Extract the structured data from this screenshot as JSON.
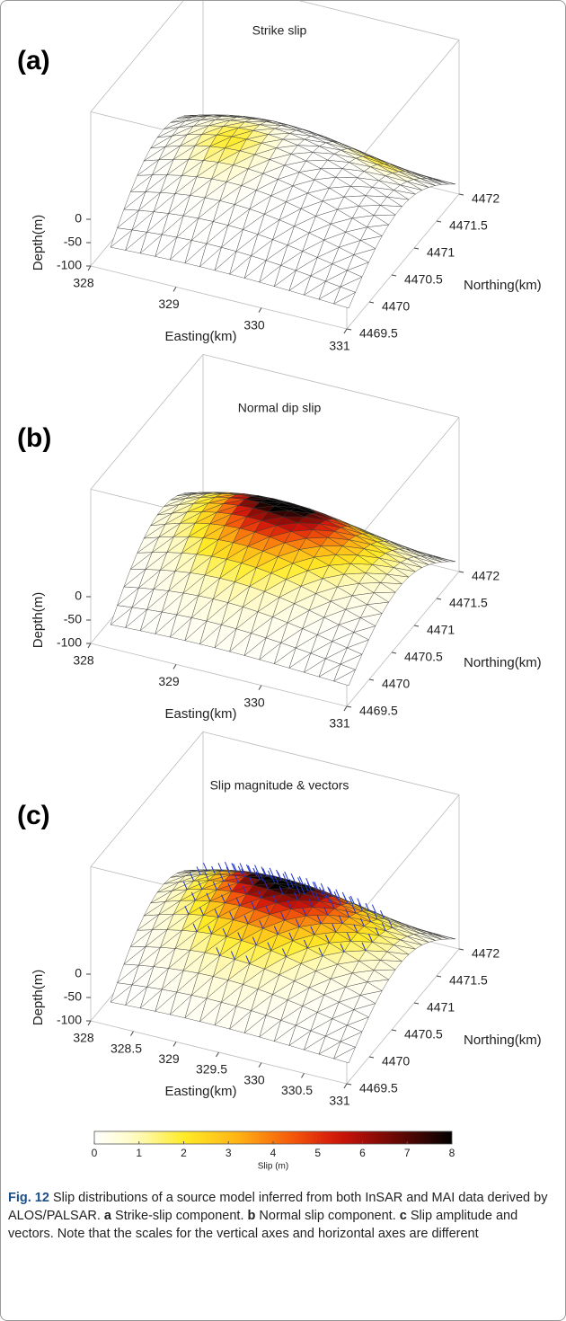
{
  "panels": [
    {
      "label": "(a)",
      "title": "Strike slip",
      "xlabel": "Easting(km)",
      "ylabel": "Northing(km)",
      "zlabel": "Depth(m)",
      "easting_lim": [
        328,
        331
      ],
      "easting_ticks": [
        328,
        329,
        330,
        331
      ],
      "northing_lim": [
        4469.5,
        4472
      ],
      "northing_ticks": [
        4469.5,
        4470,
        4470.5,
        4471,
        4471.5,
        4472
      ],
      "depth_lim": [
        -100,
        0
      ],
      "depth_ticks": [
        0,
        -50,
        -100
      ]
    },
    {
      "label": "(b)",
      "title": "Normal dip slip",
      "xlabel": "Easting(km)",
      "ylabel": "Northing(km)",
      "zlabel": "Depth(m)",
      "easting_lim": [
        328,
        331
      ],
      "easting_ticks": [
        328,
        329,
        330,
        331
      ],
      "northing_lim": [
        4469.5,
        4472
      ],
      "northing_ticks": [
        4469.5,
        4470,
        4470.5,
        4471,
        4471.5,
        4472
      ],
      "depth_lim": [
        -100,
        0
      ],
      "depth_ticks": [
        0,
        -50,
        -100
      ]
    },
    {
      "label": "(c)",
      "title": "Slip magnitude & vectors",
      "xlabel": "Easting(km)",
      "ylabel": "Northing(km)",
      "zlabel": "Depth(m)",
      "easting_lim": [
        328,
        331
      ],
      "easting_ticks": [
        328,
        328.5,
        329,
        329.5,
        330,
        330.5,
        331
      ],
      "northing_lim": [
        4469.5,
        4472
      ],
      "northing_ticks": [
        4469.5,
        4470,
        4470.5,
        4471,
        4471.5,
        4472
      ],
      "depth_lim": [
        -100,
        0
      ],
      "depth_ticks": [
        0,
        -50,
        -100
      ]
    }
  ],
  "colorbar": {
    "label": "Slip (m)",
    "lim": [
      0,
      8
    ],
    "ticks": [
      0,
      1,
      2,
      3,
      4,
      5,
      6,
      7,
      8
    ]
  },
  "caption": {
    "label": "Fig. 12",
    "intro": "Slip distributions of a source model inferred from both InSAR and MAI data derived by ALOS/PALSAR.",
    "items": [
      {
        "key": "a",
        "text": "Strike-slip component."
      },
      {
        "key": "b",
        "text": "Normal slip component."
      },
      {
        "key": "c",
        "text": "Slip amplitude and vectors."
      }
    ],
    "note": "Note that the scales for the vertical axes and horizontal axes are different"
  }
}
